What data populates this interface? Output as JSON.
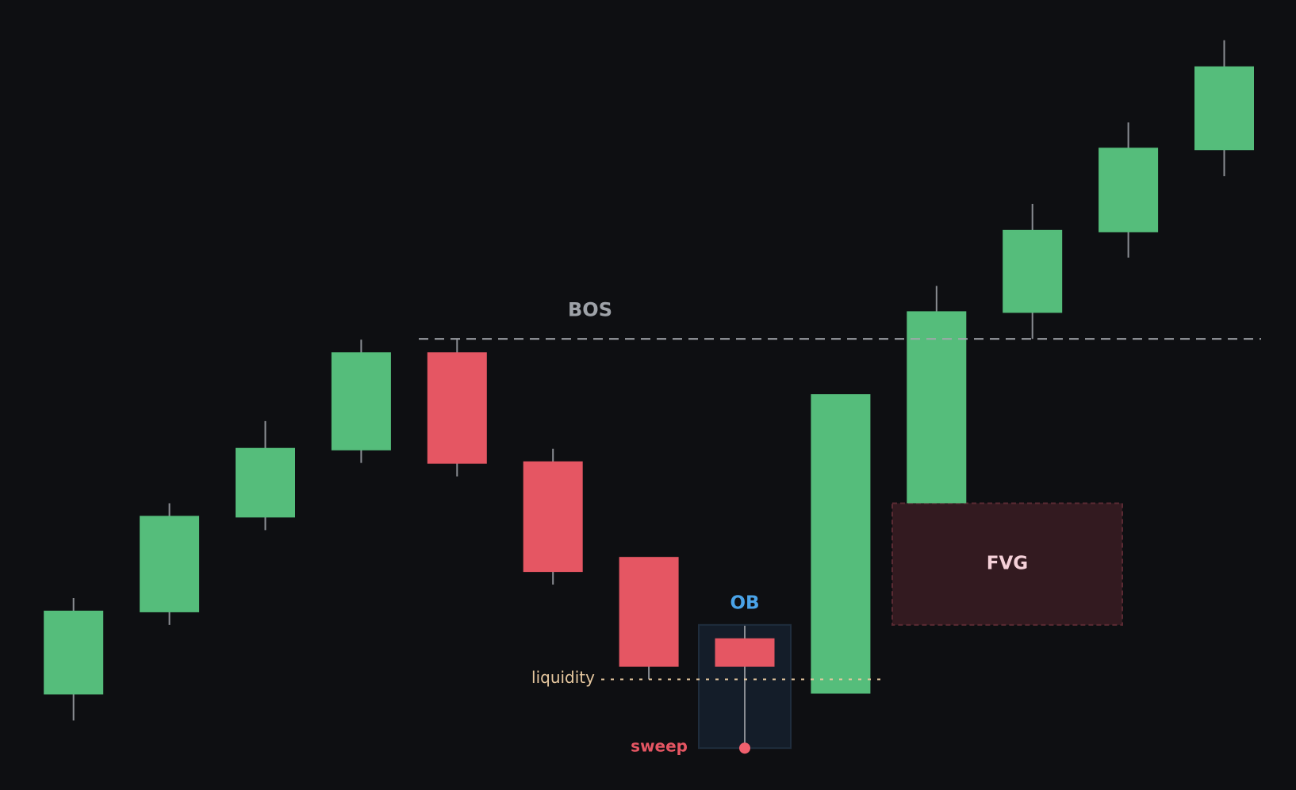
{
  "chart_data": {
    "type": "candlestick",
    "open": [
      12.2,
      22.6,
      34.6,
      43.1,
      55.3,
      41.5,
      29.4,
      19.1,
      12.3,
      36.4,
      60.5,
      70.7,
      81.1
    ],
    "high": [
      24.3,
      36.3,
      46.7,
      57.0,
      57.0,
      43.2,
      29.4,
      20.8,
      50.0,
      63.8,
      74.2,
      84.5,
      94.9
    ],
    "low": [
      8.8,
      20.9,
      32.9,
      41.4,
      39.7,
      26.0,
      14.0,
      5.3,
      12.3,
      36.4,
      57.1,
      67.4,
      77.7
    ],
    "close": [
      22.6,
      34.6,
      43.2,
      55.3,
      41.4,
      27.7,
      15.7,
      15.7,
      50.0,
      60.5,
      70.8,
      81.2,
      91.5
    ],
    "up_color": "#55bd7b",
    "down_color": "#e55663",
    "ylim": [
      0,
      100
    ],
    "bos": {
      "label": "BOS",
      "value": 57.1
    },
    "liquidity": {
      "label": "liquidity",
      "value": 14.0
    },
    "fvg": {
      "label": "FVG",
      "low": 20.9,
      "high": 36.3
    },
    "ob": {
      "label": "OB",
      "low": 5.3,
      "high": 20.9
    },
    "sweep": {
      "label": "sweep",
      "value": 5.3
    }
  }
}
